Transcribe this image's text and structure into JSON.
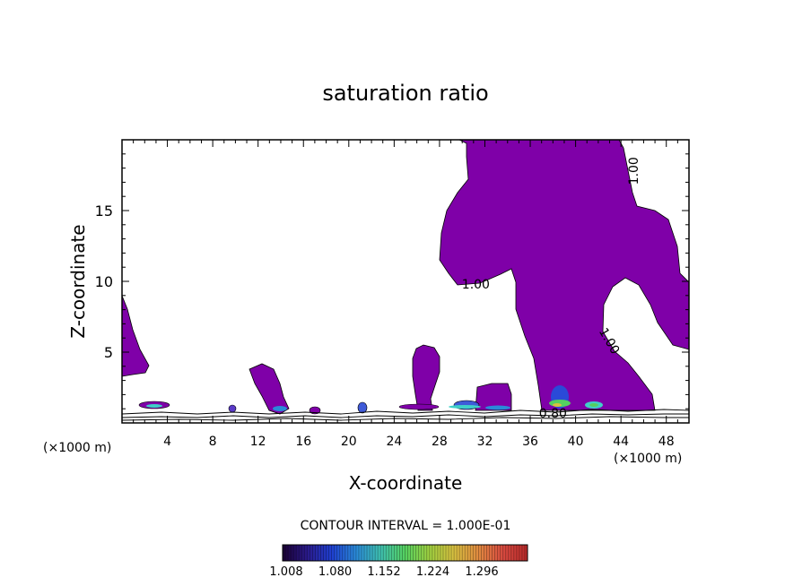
{
  "chart_data": {
    "type": "contour",
    "title": "saturation ratio",
    "xlabel": "X-coordinate",
    "ylabel": "Z-coordinate",
    "x_unit_left": "(×1000 m)",
    "x_unit_right": "(×1000 m)",
    "xlim": [
      0,
      50
    ],
    "ylim": [
      0,
      20
    ],
    "x_ticks": [
      4,
      8,
      12,
      16,
      20,
      24,
      28,
      32,
      36,
      40,
      44,
      48
    ],
    "y_ticks": [
      5,
      10,
      15
    ],
    "contour_labels": [
      {
        "text": "1.00",
        "x": 45.1,
        "y": 17.8
      },
      {
        "text": "1.00",
        "x": 31.2,
        "y": 9.8
      },
      {
        "text": "1.00",
        "x": 43.0,
        "y": 5.8
      },
      {
        "text": "0.80",
        "x": 38.0,
        "y": 0.7
      }
    ],
    "contour_interval_text": "CONTOUR INTERVAL = 1.000E-01",
    "colorbar": {
      "tick_labels": [
        "1.008",
        "1.080",
        "1.152",
        "1.224",
        "1.296"
      ],
      "colors": [
        "#1a0033",
        "#2a1a8a",
        "#1f3fd0",
        "#2a8ad8",
        "#3fc0b0",
        "#55d060",
        "#a0d040",
        "#d8c040",
        "#e08a40",
        "#d84a40",
        "#b82a2a"
      ]
    },
    "fill_color": "#7f00a8",
    "grid": false
  }
}
